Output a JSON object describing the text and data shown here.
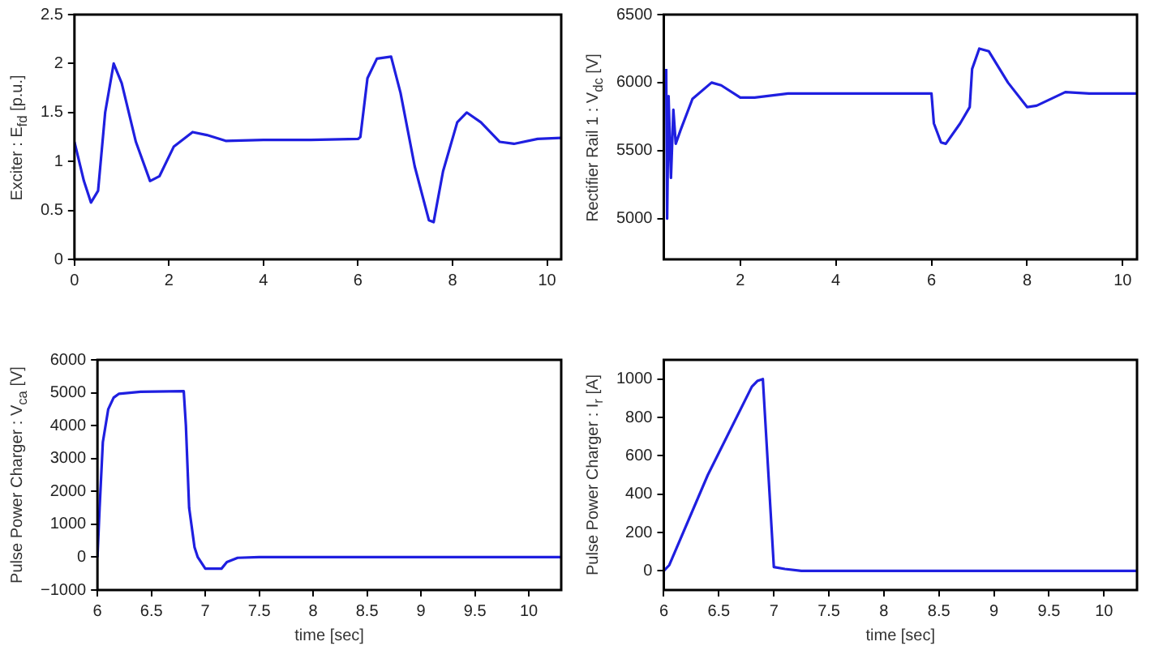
{
  "chart_data": [
    {
      "type": "line",
      "ylabel": "Exciter : E$_{fd}$ [p.u.]",
      "x": [
        0,
        0.2,
        0.35,
        0.5,
        0.65,
        0.83,
        1.0,
        1.3,
        1.6,
        1.8,
        2.1,
        2.5,
        2.8,
        3.2,
        4,
        5,
        6.0,
        6.05,
        6.2,
        6.4,
        6.7,
        6.9,
        7.2,
        7.5,
        7.6,
        7.8,
        8.1,
        8.3,
        8.6,
        9.0,
        9.3,
        9.8,
        10.3
      ],
      "series": [
        {
          "color": "#1f1fe0",
          "values": [
            1.2,
            0.8,
            0.58,
            0.7,
            1.5,
            2.0,
            1.8,
            1.2,
            0.8,
            0.85,
            1.15,
            1.3,
            1.27,
            1.21,
            1.22,
            1.22,
            1.23,
            1.25,
            1.85,
            2.05,
            2.07,
            1.7,
            0.95,
            0.4,
            0.38,
            0.9,
            1.4,
            1.5,
            1.4,
            1.2,
            1.18,
            1.23,
            1.24
          ]
        }
      ],
      "xlim": [
        0,
        10.3
      ],
      "xticks": [
        0,
        2,
        4,
        6,
        8,
        10
      ],
      "ylim": [
        0,
        2.5
      ],
      "yticks": [
        0,
        0.5,
        1,
        1.5,
        2,
        2.5
      ]
    },
    {
      "type": "line",
      "ylabel": "Rectifier Rail 1 : V$_{dc}$ [V]",
      "x": [
        0.45,
        0.47,
        0.5,
        0.55,
        0.6,
        0.65,
        0.75,
        1.0,
        1.4,
        1.6,
        2.0,
        2.3,
        3,
        4,
        5,
        6.0,
        6.05,
        6.2,
        6.3,
        6.6,
        6.8,
        6.85,
        7.0,
        7.2,
        7.6,
        8.0,
        8.2,
        8.8,
        9.3,
        10.3
      ],
      "series": [
        {
          "color": "#1f1fe0",
          "values": [
            6100,
            5000,
            5900,
            5300,
            5800,
            5550,
            5650,
            5880,
            6000,
            5980,
            5890,
            5890,
            5920,
            5920,
            5920,
            5920,
            5700,
            5560,
            5550,
            5700,
            5820,
            6100,
            6250,
            6230,
            6000,
            5820,
            5830,
            5930,
            5920,
            5920
          ]
        }
      ],
      "xlim": [
        0.4,
        10.3
      ],
      "xticks": [
        2,
        4,
        6,
        8,
        10
      ],
      "ylim": [
        4700,
        6500
      ],
      "yticks": [
        5000,
        5500,
        6000,
        6500
      ]
    },
    {
      "type": "line",
      "xlabel": "time [sec]",
      "ylabel": "Pulse Power Charger : V$_{ca}$ [V]",
      "x": [
        6,
        6.02,
        6.05,
        6.1,
        6.15,
        6.2,
        6.4,
        6.8,
        6.82,
        6.85,
        6.9,
        6.93,
        7.0,
        7.15,
        7.2,
        7.3,
        7.5,
        10.3
      ],
      "series": [
        {
          "color": "#1f1fe0",
          "values": [
            0,
            1500,
            3500,
            4500,
            4850,
            4970,
            5030,
            5050,
            4000,
            1500,
            300,
            0,
            -350,
            -350,
            -150,
            -20,
            0,
            0
          ]
        }
      ],
      "xlim": [
        6,
        10.3
      ],
      "xticks": [
        6,
        6.5,
        7,
        7.5,
        8,
        8.5,
        9,
        9.5,
        10
      ],
      "ylim": [
        -1000,
        6000
      ],
      "yticks": [
        {
          "value": -1000,
          "label": "−1000"
        },
        0,
        1000,
        2000,
        3000,
        4000,
        5000,
        6000
      ]
    },
    {
      "type": "line",
      "xlabel": "time [sec]",
      "ylabel": "Pulse Power Charger : I$_{r}$ [A]",
      "x": [
        6,
        6.05,
        6.4,
        6.8,
        6.85,
        6.9,
        7.0,
        7.1,
        7.25,
        10.3
      ],
      "series": [
        {
          "color": "#1f1fe0",
          "values": [
            0,
            30,
            500,
            960,
            990,
            1000,
            20,
            10,
            0,
            0
          ]
        }
      ],
      "xlim": [
        6,
        10.3
      ],
      "xticks": [
        6,
        6.5,
        7,
        7.5,
        8,
        8.5,
        9,
        9.5,
        10
      ],
      "ylim": [
        -100,
        1100
      ],
      "yticks": [
        0,
        200,
        400,
        600,
        800,
        1000
      ]
    }
  ]
}
